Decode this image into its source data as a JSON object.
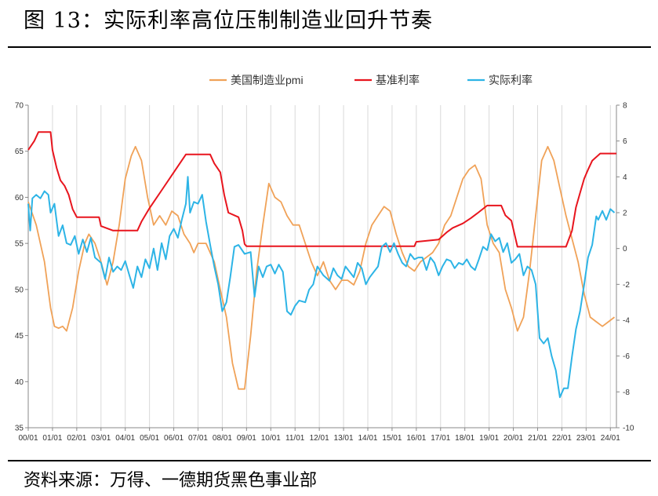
{
  "figure": {
    "title": "图 13：实际利率高位压制制造业回升节奏",
    "source": "资料来源：万得、一德期货黑色事业部"
  },
  "chart_data": {
    "type": "line",
    "x_ticks": [
      "00/01",
      "01/01",
      "02/01",
      "03/01",
      "04/01",
      "05/01",
      "06/01",
      "07/01",
      "08/01",
      "09/01",
      "10/01",
      "11/01",
      "12/01",
      "13/01",
      "14/01",
      "15/01",
      "16/01",
      "17/01",
      "18/01",
      "19/01",
      "20/01",
      "21/01",
      "22/01",
      "23/01",
      "24/01"
    ],
    "x_start": 2000.0,
    "y_left": {
      "lim": [
        35,
        70
      ],
      "ticks": [
        35,
        40,
        45,
        50,
        55,
        60,
        65,
        70
      ]
    },
    "y_right": {
      "lim": [
        -10,
        8
      ],
      "ticks": [
        -10,
        -8,
        -6,
        -4,
        -2,
        0,
        2,
        4,
        6,
        8
      ]
    },
    "grid": "vertical",
    "legend": "top-center",
    "series": [
      {
        "name": "美国制造业pmi",
        "axis": "left",
        "color": "#F0A258",
        "points": [
          [
            2000.0,
            59.5
          ],
          [
            2000.33,
            57
          ],
          [
            2000.67,
            53
          ],
          [
            2000.92,
            48
          ],
          [
            2001.08,
            46
          ],
          [
            2001.25,
            45.8
          ],
          [
            2001.42,
            46
          ],
          [
            2001.58,
            45.5
          ],
          [
            2001.83,
            48
          ],
          [
            2002.08,
            52
          ],
          [
            2002.33,
            55
          ],
          [
            2002.5,
            56
          ],
          [
            2002.75,
            55
          ],
          [
            2003.0,
            53
          ],
          [
            2003.25,
            50.5
          ],
          [
            2003.5,
            53
          ],
          [
            2003.75,
            57
          ],
          [
            2004.0,
            62
          ],
          [
            2004.25,
            64.5
          ],
          [
            2004.42,
            65.5
          ],
          [
            2004.67,
            64
          ],
          [
            2004.92,
            60
          ],
          [
            2005.17,
            57
          ],
          [
            2005.42,
            58
          ],
          [
            2005.67,
            57
          ],
          [
            2005.92,
            58.5
          ],
          [
            2006.17,
            58
          ],
          [
            2006.42,
            56
          ],
          [
            2006.67,
            55
          ],
          [
            2006.83,
            54
          ],
          [
            2007.0,
            55
          ],
          [
            2007.33,
            55
          ],
          [
            2007.67,
            53
          ],
          [
            2007.92,
            50
          ],
          [
            2008.17,
            47
          ],
          [
            2008.42,
            42
          ],
          [
            2008.67,
            39.2
          ],
          [
            2008.92,
            39.2
          ],
          [
            2009.17,
            45
          ],
          [
            2009.42,
            52
          ],
          [
            2009.67,
            57
          ],
          [
            2009.92,
            61.5
          ],
          [
            2010.17,
            60
          ],
          [
            2010.42,
            59.5
          ],
          [
            2010.67,
            58
          ],
          [
            2010.92,
            57
          ],
          [
            2011.17,
            57
          ],
          [
            2011.42,
            55
          ],
          [
            2011.67,
            53
          ],
          [
            2011.92,
            51.5
          ],
          [
            2012.17,
            53
          ],
          [
            2012.42,
            51
          ],
          [
            2012.67,
            50
          ],
          [
            2012.92,
            51
          ],
          [
            2013.17,
            51
          ],
          [
            2013.42,
            50.5
          ],
          [
            2013.67,
            52
          ],
          [
            2013.92,
            55
          ],
          [
            2014.17,
            57
          ],
          [
            2014.42,
            58
          ],
          [
            2014.67,
            59
          ],
          [
            2014.92,
            58.5
          ],
          [
            2015.17,
            56
          ],
          [
            2015.42,
            54
          ],
          [
            2015.67,
            52.5
          ],
          [
            2015.92,
            52
          ],
          [
            2016.17,
            53
          ],
          [
            2016.42,
            53.5
          ],
          [
            2016.67,
            54
          ],
          [
            2016.92,
            55
          ],
          [
            2017.17,
            57
          ],
          [
            2017.42,
            58
          ],
          [
            2017.67,
            60
          ],
          [
            2017.92,
            62
          ],
          [
            2018.17,
            63
          ],
          [
            2018.42,
            63.5
          ],
          [
            2018.67,
            62
          ],
          [
            2018.92,
            57
          ],
          [
            2019.17,
            55
          ],
          [
            2019.42,
            54
          ],
          [
            2019.67,
            50
          ],
          [
            2019.92,
            48
          ],
          [
            2020.17,
            45.5
          ],
          [
            2020.42,
            47
          ],
          [
            2020.67,
            52
          ],
          [
            2020.92,
            58
          ],
          [
            2021.17,
            64
          ],
          [
            2021.42,
            65.5
          ],
          [
            2021.67,
            64
          ],
          [
            2021.92,
            61
          ],
          [
            2022.17,
            58
          ],
          [
            2022.42,
            55.5
          ],
          [
            2022.67,
            53
          ],
          [
            2022.92,
            49.5
          ],
          [
            2023.17,
            47
          ],
          [
            2023.42,
            46.5
          ],
          [
            2023.67,
            46
          ],
          [
            2023.92,
            46.5
          ],
          [
            2024.17,
            47
          ]
        ]
      },
      {
        "name": "基准利率",
        "axis": "right",
        "color": "#E8151E",
        "points": [
          [
            2000.0,
            5.5
          ],
          [
            2000.25,
            6.0
          ],
          [
            2000.42,
            6.5
          ],
          [
            2000.92,
            6.5
          ],
          [
            2001.0,
            5.5
          ],
          [
            2001.17,
            4.5
          ],
          [
            2001.33,
            3.8
          ],
          [
            2001.5,
            3.5
          ],
          [
            2001.67,
            3.0
          ],
          [
            2001.83,
            2.2
          ],
          [
            2002.0,
            1.75
          ],
          [
            2002.92,
            1.75
          ],
          [
            2003.0,
            1.25
          ],
          [
            2003.5,
            1.0
          ],
          [
            2004.5,
            1.0
          ],
          [
            2004.67,
            1.5
          ],
          [
            2005.0,
            2.25
          ],
          [
            2005.5,
            3.25
          ],
          [
            2006.0,
            4.25
          ],
          [
            2006.5,
            5.25
          ],
          [
            2007.5,
            5.25
          ],
          [
            2007.67,
            4.75
          ],
          [
            2007.92,
            4.25
          ],
          [
            2008.08,
            3.0
          ],
          [
            2008.25,
            2.0
          ],
          [
            2008.67,
            1.75
          ],
          [
            2008.83,
            1.0
          ],
          [
            2008.92,
            0.25
          ],
          [
            2009.0,
            0.125
          ],
          [
            2015.92,
            0.125
          ],
          [
            2016.0,
            0.375
          ],
          [
            2016.92,
            0.5
          ],
          [
            2017.25,
            0.9
          ],
          [
            2017.5,
            1.15
          ],
          [
            2017.92,
            1.4
          ],
          [
            2018.25,
            1.7
          ],
          [
            2018.5,
            1.95
          ],
          [
            2018.92,
            2.4
          ],
          [
            2019.5,
            2.4
          ],
          [
            2019.67,
            1.85
          ],
          [
            2019.92,
            1.55
          ],
          [
            2020.17,
            0.1
          ],
          [
            2022.17,
            0.1
          ],
          [
            2022.42,
            1.0
          ],
          [
            2022.58,
            2.3
          ],
          [
            2022.75,
            3.1
          ],
          [
            2022.92,
            3.9
          ],
          [
            2023.08,
            4.4
          ],
          [
            2023.25,
            4.9
          ],
          [
            2023.58,
            5.3
          ],
          [
            2024.25,
            5.3
          ]
        ]
      },
      {
        "name": "实际利率",
        "axis": "right",
        "color": "#2DB4E6",
        "points": [
          [
            2000.0,
            2.5
          ],
          [
            2000.08,
            1.0
          ],
          [
            2000.17,
            2.8
          ],
          [
            2000.33,
            3.0
          ],
          [
            2000.5,
            2.8
          ],
          [
            2000.67,
            3.2
          ],
          [
            2000.83,
            3.0
          ],
          [
            2000.92,
            2.0
          ],
          [
            2001.08,
            2.5
          ],
          [
            2001.25,
            0.7
          ],
          [
            2001.42,
            1.3
          ],
          [
            2001.58,
            0.3
          ],
          [
            2001.75,
            0.2
          ],
          [
            2001.92,
            0.7
          ],
          [
            2002.08,
            -0.3
          ],
          [
            2002.25,
            0.5
          ],
          [
            2002.42,
            -0.2
          ],
          [
            2002.58,
            0.6
          ],
          [
            2002.75,
            -0.5
          ],
          [
            2003.0,
            -0.8
          ],
          [
            2003.17,
            -1.7
          ],
          [
            2003.33,
            -0.5
          ],
          [
            2003.5,
            -1.3
          ],
          [
            2003.67,
            -1.0
          ],
          [
            2003.83,
            -1.2
          ],
          [
            2004.0,
            -0.7
          ],
          [
            2004.17,
            -1.5
          ],
          [
            2004.33,
            -2.2
          ],
          [
            2004.5,
            -1.0
          ],
          [
            2004.67,
            -1.6
          ],
          [
            2004.83,
            -0.6
          ],
          [
            2005.0,
            -1.1
          ],
          [
            2005.17,
            0.0
          ],
          [
            2005.33,
            -1.2
          ],
          [
            2005.5,
            0.3
          ],
          [
            2005.67,
            -0.6
          ],
          [
            2005.83,
            0.7
          ],
          [
            2006.0,
            1.1
          ],
          [
            2006.17,
            0.6
          ],
          [
            2006.33,
            1.6
          ],
          [
            2006.5,
            2.5
          ],
          [
            2006.58,
            4.0
          ],
          [
            2006.67,
            2.0
          ],
          [
            2006.83,
            2.6
          ],
          [
            2007.0,
            2.5
          ],
          [
            2007.17,
            3.0
          ],
          [
            2007.33,
            1.5
          ],
          [
            2007.5,
            0.2
          ],
          [
            2007.67,
            -1.0
          ],
          [
            2007.83,
            -2.0
          ],
          [
            2008.0,
            -3.5
          ],
          [
            2008.17,
            -3.0
          ],
          [
            2008.33,
            -1.6
          ],
          [
            2008.5,
            0.1
          ],
          [
            2008.67,
            0.2
          ],
          [
            2008.92,
            -0.3
          ],
          [
            2009.17,
            -0.2
          ],
          [
            2009.33,
            -2.7
          ],
          [
            2009.5,
            -1.0
          ],
          [
            2009.67,
            -1.6
          ],
          [
            2009.83,
            -1.0
          ],
          [
            2010.0,
            -0.9
          ],
          [
            2010.17,
            -1.4
          ],
          [
            2010.33,
            -0.9
          ],
          [
            2010.5,
            -1.3
          ],
          [
            2010.67,
            -3.5
          ],
          [
            2010.83,
            -3.7
          ],
          [
            2011.0,
            -3.2
          ],
          [
            2011.17,
            -2.9
          ],
          [
            2011.42,
            -3.0
          ],
          [
            2011.58,
            -2.3
          ],
          [
            2011.75,
            -2.0
          ],
          [
            2011.92,
            -1.0
          ],
          [
            2012.17,
            -1.5
          ],
          [
            2012.42,
            -1.8
          ],
          [
            2012.58,
            -1.1
          ],
          [
            2012.75,
            -1.5
          ],
          [
            2012.92,
            -1.7
          ],
          [
            2013.08,
            -1.0
          ],
          [
            2013.25,
            -1.3
          ],
          [
            2013.42,
            -1.6
          ],
          [
            2013.58,
            -0.8
          ],
          [
            2013.75,
            -1.1
          ],
          [
            2013.92,
            -2.0
          ],
          [
            2014.08,
            -1.6
          ],
          [
            2014.25,
            -1.3
          ],
          [
            2014.42,
            -1.0
          ],
          [
            2014.58,
            0.1
          ],
          [
            2014.75,
            0.3
          ],
          [
            2014.92,
            -0.2
          ],
          [
            2015.08,
            0.3
          ],
          [
            2015.25,
            -0.3
          ],
          [
            2015.42,
            -0.8
          ],
          [
            2015.58,
            -1.0
          ],
          [
            2015.75,
            -0.3
          ],
          [
            2015.92,
            -0.6
          ],
          [
            2016.08,
            -0.5
          ],
          [
            2016.25,
            -0.5
          ],
          [
            2016.42,
            -1.2
          ],
          [
            2016.58,
            -0.5
          ],
          [
            2016.75,
            -0.8
          ],
          [
            2016.92,
            -1.5
          ],
          [
            2017.08,
            -1.0
          ],
          [
            2017.25,
            -0.6
          ],
          [
            2017.42,
            -0.7
          ],
          [
            2017.58,
            -1.1
          ],
          [
            2017.75,
            -0.8
          ],
          [
            2017.92,
            -0.9
          ],
          [
            2018.08,
            -0.6
          ],
          [
            2018.25,
            -1.0
          ],
          [
            2018.42,
            -1.2
          ],
          [
            2018.58,
            -0.6
          ],
          [
            2018.75,
            0.1
          ],
          [
            2018.92,
            -0.1
          ],
          [
            2019.08,
            0.8
          ],
          [
            2019.25,
            0.4
          ],
          [
            2019.42,
            0.6
          ],
          [
            2019.58,
            -0.2
          ],
          [
            2019.75,
            0.3
          ],
          [
            2019.92,
            -0.8
          ],
          [
            2020.08,
            -0.6
          ],
          [
            2020.25,
            -0.3
          ],
          [
            2020.42,
            -1.5
          ],
          [
            2020.58,
            -1.0
          ],
          [
            2020.75,
            -1.2
          ],
          [
            2020.92,
            -2.0
          ],
          [
            2021.08,
            -5.0
          ],
          [
            2021.25,
            -5.3
          ],
          [
            2021.42,
            -5.0
          ],
          [
            2021.58,
            -6.0
          ],
          [
            2021.75,
            -6.8
          ],
          [
            2021.92,
            -8.3
          ],
          [
            2022.08,
            -7.8
          ],
          [
            2022.25,
            -7.8
          ],
          [
            2022.42,
            -6.0
          ],
          [
            2022.58,
            -4.5
          ],
          [
            2022.75,
            -3.5
          ],
          [
            2022.92,
            -2.0
          ],
          [
            2023.08,
            -0.5
          ],
          [
            2023.25,
            0.2
          ],
          [
            2023.42,
            1.8
          ],
          [
            2023.5,
            1.6
          ],
          [
            2023.67,
            2.1
          ],
          [
            2023.83,
            1.6
          ],
          [
            2024.0,
            2.2
          ],
          [
            2024.17,
            2.0
          ]
        ]
      }
    ]
  }
}
